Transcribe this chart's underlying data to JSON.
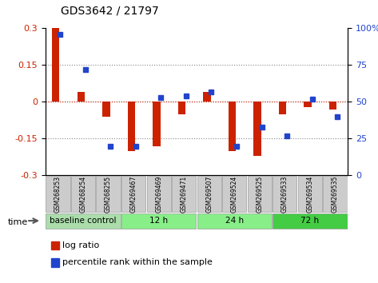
{
  "title": "GDS3642 / 21797",
  "samples": [
    "GSM268253",
    "GSM268254",
    "GSM268255",
    "GSM269467",
    "GSM269469",
    "GSM269471",
    "GSM269507",
    "GSM269524",
    "GSM269525",
    "GSM269533",
    "GSM269534",
    "GSM269535"
  ],
  "log_ratio": [
    0.3,
    0.04,
    -0.06,
    -0.2,
    -0.18,
    -0.05,
    0.04,
    -0.2,
    -0.22,
    -0.05,
    -0.02,
    -0.03
  ],
  "percentile_rank": [
    96,
    72,
    20,
    20,
    53,
    54,
    57,
    20,
    33,
    27,
    52,
    40
  ],
  "groups": [
    {
      "label": "baseline control",
      "start": 0,
      "end": 3,
      "color": "#aaddaa"
    },
    {
      "label": "12 h",
      "start": 3,
      "end": 6,
      "color": "#88ee88"
    },
    {
      "label": "24 h",
      "start": 6,
      "end": 9,
      "color": "#88ee88"
    },
    {
      "label": "72 h",
      "start": 9,
      "end": 12,
      "color": "#44cc44"
    }
  ],
  "ylim_left": [
    -0.3,
    0.3
  ],
  "ylim_right": [
    0,
    100
  ],
  "yticks_left": [
    -0.3,
    -0.15,
    0,
    0.15,
    0.3
  ],
  "yticks_right": [
    0,
    25,
    50,
    75,
    100
  ],
  "bar_color_red": "#cc2200",
  "bar_color_blue": "#2244cc",
  "bg_color": "#ffffff",
  "grid_color": "#888888"
}
